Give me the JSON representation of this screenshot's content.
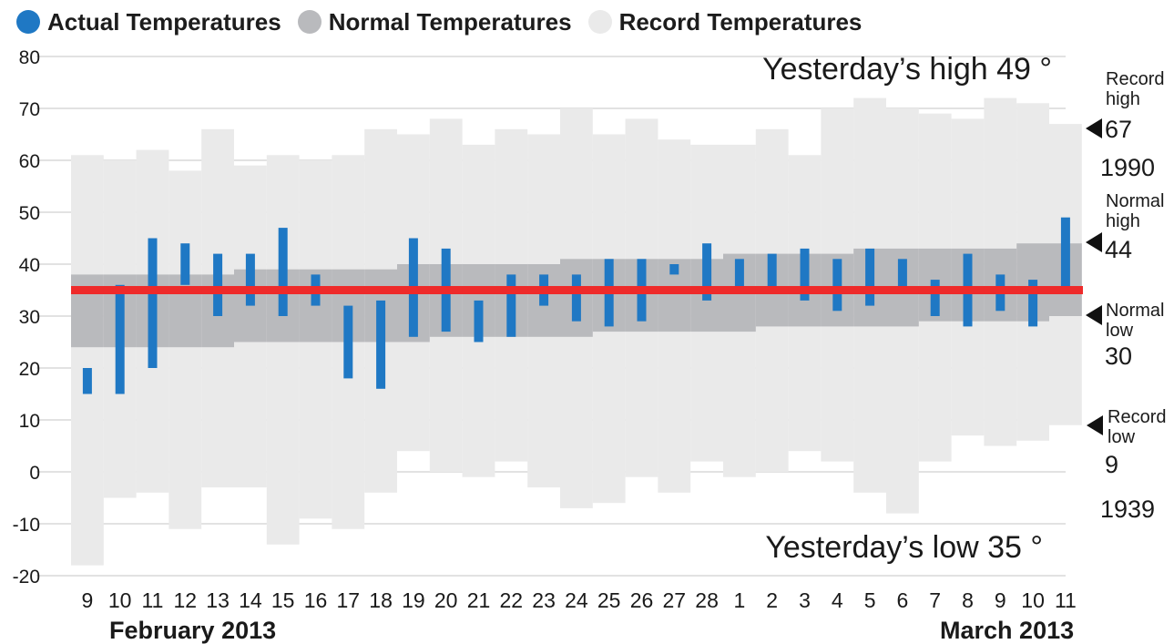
{
  "legend": {
    "actual": "Actual Temperatures",
    "normal": "Normal Temperatures",
    "record": "Record Temperatures"
  },
  "colors": {
    "actual": "#1f78c4",
    "normal": "#b9babd",
    "record": "#eaeaea",
    "yesterday_line": "#ee2a2a",
    "grid": "#d9d9d9",
    "marker": "#111111"
  },
  "annotations": {
    "yesterday_high": "Yesterday’s high 49 °",
    "yesterday_low": "Yesterday’s low 35 °",
    "record_high_label_1": "Record",
    "record_high_label_2": "high",
    "record_high_value": "67",
    "record_high_year": "1990",
    "normal_high_label_1": "Normal",
    "normal_high_label_2": "high",
    "normal_high_value": "44",
    "normal_low_label_1": "Normal",
    "normal_low_label_2": "low",
    "normal_low_value": "30",
    "record_low_label_1": "Record",
    "record_low_label_2": "low",
    "record_low_value": "9",
    "record_low_year": "1939"
  },
  "month_labels": {
    "feb_month": "February",
    "feb_year": "2013",
    "mar_month": "March",
    "mar_year": "2013"
  },
  "chart_data": {
    "type": "bar",
    "ylim": [
      -20,
      80
    ],
    "yticks": [
      80,
      70,
      60,
      50,
      40,
      30,
      20,
      10,
      0,
      -10,
      -20
    ],
    "categories": [
      "9",
      "10",
      "11",
      "12",
      "13",
      "14",
      "15",
      "16",
      "17",
      "18",
      "19",
      "20",
      "21",
      "22",
      "23",
      "24",
      "25",
      "26",
      "27",
      "28",
      "1",
      "2",
      "3",
      "4",
      "5",
      "6",
      "7",
      "8",
      "9",
      "10",
      "11"
    ],
    "yesterday_line": 35,
    "record_low": [
      -18,
      -5,
      -4,
      -11,
      -3,
      -3,
      -14,
      -9,
      -11,
      -4,
      4,
      0,
      -1,
      2,
      -3,
      -7,
      -6,
      -1,
      -4,
      2,
      -1,
      0,
      4,
      2,
      -4,
      -8,
      2,
      7,
      5,
      6,
      9
    ],
    "record_high": [
      61,
      60,
      62,
      58,
      66,
      59,
      61,
      60,
      61,
      66,
      65,
      68,
      63,
      66,
      65,
      70,
      65,
      68,
      64,
      63,
      63,
      66,
      61,
      70,
      72,
      70,
      69,
      68,
      72,
      71,
      67
    ],
    "normal_low": [
      24,
      24,
      24,
      24,
      24,
      25,
      25,
      25,
      25,
      25,
      25,
      26,
      26,
      26,
      26,
      26,
      27,
      27,
      27,
      27,
      27,
      28,
      28,
      28,
      28,
      28,
      29,
      29,
      29,
      29,
      30
    ],
    "normal_high": [
      38,
      38,
      38,
      38,
      38,
      39,
      39,
      39,
      39,
      39,
      40,
      40,
      40,
      40,
      40,
      41,
      41,
      41,
      41,
      41,
      42,
      42,
      42,
      42,
      43,
      43,
      43,
      43,
      43,
      44,
      44
    ],
    "actual_low": [
      15,
      15,
      20,
      36,
      30,
      32,
      30,
      32,
      18,
      16,
      26,
      27,
      25,
      26,
      32,
      29,
      28,
      29,
      38,
      33,
      35,
      35,
      33,
      31,
      32,
      35,
      30,
      28,
      31,
      28,
      35
    ],
    "actual_high": [
      20,
      36,
      45,
      44,
      42,
      42,
      47,
      38,
      32,
      33,
      45,
      43,
      33,
      38,
      38,
      38,
      41,
      41,
      40,
      44,
      41,
      42,
      43,
      41,
      43,
      41,
      37,
      42,
      38,
      37,
      49
    ]
  }
}
